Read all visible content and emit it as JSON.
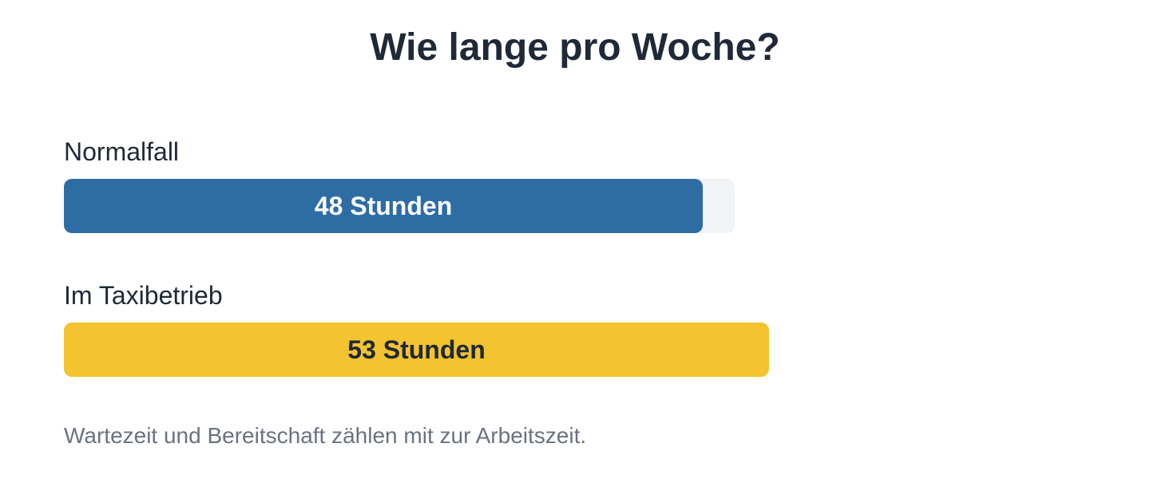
{
  "title": "Wie lange pro Woche?",
  "chart_data": {
    "type": "bar",
    "orientation": "horizontal",
    "title": "Wie lange pro Woche?",
    "categories": [
      "Normalfall",
      "Im Taxibetrieb"
    ],
    "values": [
      48,
      53
    ],
    "value_labels": [
      "48 Stunden",
      "53 Stunden"
    ],
    "unit": "Stunden",
    "background_track_max": 50,
    "colors": [
      "#2e6da4",
      "#f3c330"
    ],
    "label_colors": [
      "#ffffff",
      "#1f2937"
    ],
    "track_color": "#f1f3f5"
  },
  "footnote": "Wartezeit und Bereitschaft zählen mit zur Arbeitszeit."
}
